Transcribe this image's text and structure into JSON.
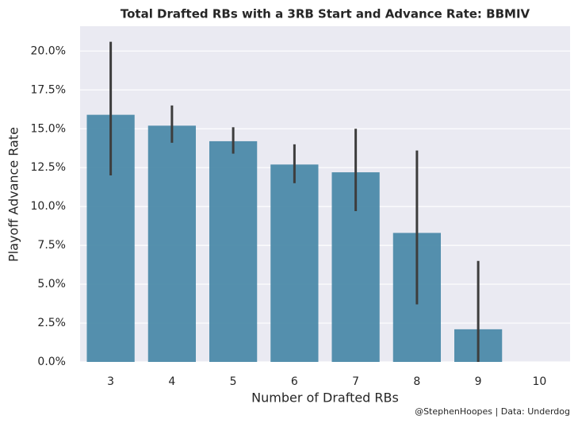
{
  "chart_data": {
    "type": "bar",
    "title": "Total Drafted RBs with a 3RB Start and Advance Rate: BBMIV",
    "x_label": "Number of Drafted RBs",
    "y_label": "Playoff Advance Rate",
    "credit": "@StephenHoopes | Data: Underdog",
    "categories": [
      "3",
      "4",
      "5",
      "6",
      "7",
      "8",
      "9",
      "10"
    ],
    "values": [
      15.9,
      15.2,
      14.2,
      12.7,
      12.2,
      8.3,
      2.1,
      0
    ],
    "error_low": [
      12.0,
      14.1,
      13.4,
      11.5,
      9.7,
      3.7,
      0,
      null
    ],
    "error_high": [
      20.6,
      16.5,
      15.1,
      14.0,
      15.0,
      13.6,
      6.5,
      null
    ],
    "color": "#4c8aa9",
    "ylim": [
      0,
      21.6
    ],
    "yticks": [
      {
        "value": 0,
        "label": "0.0%"
      },
      {
        "value": 2.5,
        "label": "2.5%"
      },
      {
        "value": 5,
        "label": "5.0%"
      },
      {
        "value": 7.5,
        "label": "7.5%"
      },
      {
        "value": 10,
        "label": "10.0%"
      },
      {
        "value": 12.5,
        "label": "12.5%"
      },
      {
        "value": 15,
        "label": "15.0%"
      },
      {
        "value": 17.5,
        "label": "17.5%"
      },
      {
        "value": 20,
        "label": "20.0%"
      }
    ],
    "grid": true
  }
}
